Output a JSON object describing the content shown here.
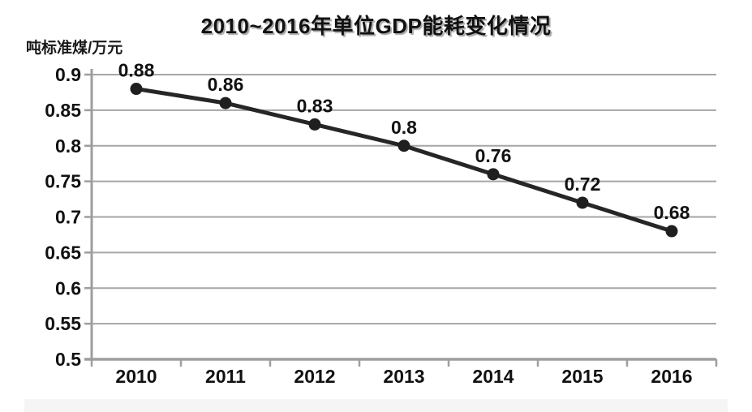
{
  "chart_data": {
    "type": "line",
    "title": "2010~2016年单位GDP能耗变化情况",
    "unit_label": "吨标准煤/万元",
    "xlabel": "",
    "ylabel": "吨标准煤/万元",
    "categories": [
      "2010",
      "2011",
      "2012",
      "2013",
      "2014",
      "2015",
      "2016"
    ],
    "series": [
      {
        "name": "单位GDP能耗",
        "values": [
          0.88,
          0.86,
          0.83,
          0.8,
          0.76,
          0.72,
          0.68
        ],
        "point_labels": [
          "0.88",
          "0.86",
          "0.83",
          "0.8",
          "0.76",
          "0.72",
          "0.68"
        ]
      }
    ],
    "ylim": [
      0.5,
      0.9
    ],
    "y_ticks": [
      0.9,
      0.85,
      0.8,
      0.75,
      0.7,
      0.65,
      0.6,
      0.55,
      0.5
    ],
    "y_tick_labels": [
      "0.9",
      "0.85",
      "0.8",
      "0.75",
      "0.7",
      "0.65",
      "0.6",
      "0.55",
      "0.5"
    ],
    "grid": "horizontal-on",
    "legend": "none",
    "colors": {
      "line": "#262626",
      "marker": "#1f1f1f",
      "grid": "#a6a6a6",
      "axis": "#9e9e9e",
      "text": "#111111",
      "background": "#ffffff"
    }
  }
}
